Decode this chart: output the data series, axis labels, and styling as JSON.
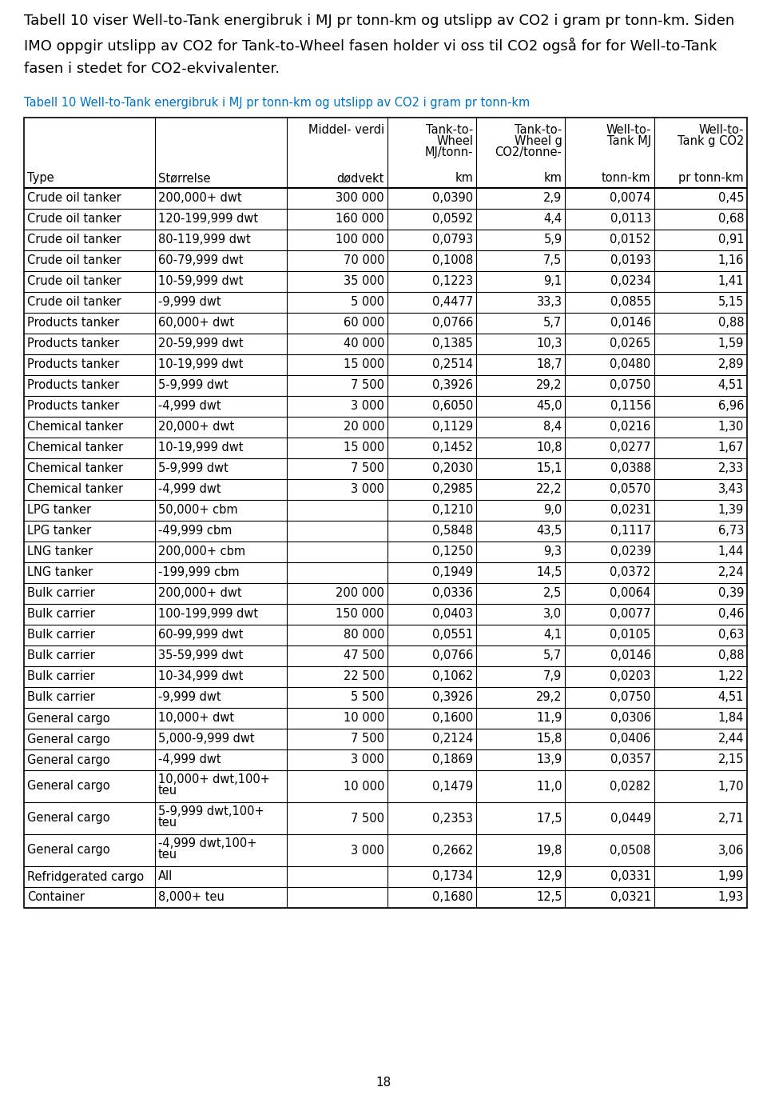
{
  "intro_text_lines": [
    "Tabell 10 viser Well-to-Tank energibruk i MJ pr tonn-km og utslipp av CO2 i gram pr tonn-km. Siden",
    "IMO oppgir utslipp av CO2 for Tank-to-Wheel fasen holder vi oss til CO2 også for for Well-to-Tank",
    "fasen i stedet for CO2-ekvivalenter."
  ],
  "table_title": "Tabell 10 Well-to-Tank energibruk i MJ pr tonn-km og utslipp av CO2 i gram pr tonn-km",
  "rows": [
    [
      "Crude oil tanker",
      "200,000+ dwt",
      "300 000",
      "0,0390",
      "2,9",
      "0,0074",
      "0,45"
    ],
    [
      "Crude oil tanker",
      "120-199,999 dwt",
      "160 000",
      "0,0592",
      "4,4",
      "0,0113",
      "0,68"
    ],
    [
      "Crude oil tanker",
      "80-119,999 dwt",
      "100 000",
      "0,0793",
      "5,9",
      "0,0152",
      "0,91"
    ],
    [
      "Crude oil tanker",
      "60-79,999 dwt",
      "70 000",
      "0,1008",
      "7,5",
      "0,0193",
      "1,16"
    ],
    [
      "Crude oil tanker",
      "10-59,999 dwt",
      "35 000",
      "0,1223",
      "9,1",
      "0,0234",
      "1,41"
    ],
    [
      "Crude oil tanker",
      "-9,999 dwt",
      "5 000",
      "0,4477",
      "33,3",
      "0,0855",
      "5,15"
    ],
    [
      "Products tanker",
      "60,000+ dwt",
      "60 000",
      "0,0766",
      "5,7",
      "0,0146",
      "0,88"
    ],
    [
      "Products tanker",
      "20-59,999 dwt",
      "40 000",
      "0,1385",
      "10,3",
      "0,0265",
      "1,59"
    ],
    [
      "Products tanker",
      "10-19,999 dwt",
      "15 000",
      "0,2514",
      "18,7",
      "0,0480",
      "2,89"
    ],
    [
      "Products tanker",
      "5-9,999 dwt",
      "7 500",
      "0,3926",
      "29,2",
      "0,0750",
      "4,51"
    ],
    [
      "Products tanker",
      "-4,999 dwt",
      "3 000",
      "0,6050",
      "45,0",
      "0,1156",
      "6,96"
    ],
    [
      "Chemical tanker",
      "20,000+ dwt",
      "20 000",
      "0,1129",
      "8,4",
      "0,0216",
      "1,30"
    ],
    [
      "Chemical tanker",
      "10-19,999 dwt",
      "15 000",
      "0,1452",
      "10,8",
      "0,0277",
      "1,67"
    ],
    [
      "Chemical tanker",
      "5-9,999 dwt",
      "7 500",
      "0,2030",
      "15,1",
      "0,0388",
      "2,33"
    ],
    [
      "Chemical tanker",
      "-4,999 dwt",
      "3 000",
      "0,2985",
      "22,2",
      "0,0570",
      "3,43"
    ],
    [
      "LPG tanker",
      "50,000+ cbm",
      "",
      "0,1210",
      "9,0",
      "0,0231",
      "1,39"
    ],
    [
      "LPG tanker",
      "-49,999 cbm",
      "",
      "0,5848",
      "43,5",
      "0,1117",
      "6,73"
    ],
    [
      "LNG tanker",
      "200,000+ cbm",
      "",
      "0,1250",
      "9,3",
      "0,0239",
      "1,44"
    ],
    [
      "LNG tanker",
      "-199,999 cbm",
      "",
      "0,1949",
      "14,5",
      "0,0372",
      "2,24"
    ],
    [
      "Bulk carrier",
      "200,000+ dwt",
      "200 000",
      "0,0336",
      "2,5",
      "0,0064",
      "0,39"
    ],
    [
      "Bulk carrier",
      "100-199,999 dwt",
      "150 000",
      "0,0403",
      "3,0",
      "0,0077",
      "0,46"
    ],
    [
      "Bulk carrier",
      "60-99,999 dwt",
      "80 000",
      "0,0551",
      "4,1",
      "0,0105",
      "0,63"
    ],
    [
      "Bulk carrier",
      "35-59,999 dwt",
      "47 500",
      "0,0766",
      "5,7",
      "0,0146",
      "0,88"
    ],
    [
      "Bulk carrier",
      "10-34,999 dwt",
      "22 500",
      "0,1062",
      "7,9",
      "0,0203",
      "1,22"
    ],
    [
      "Bulk carrier",
      "-9,999 dwt",
      "5 500",
      "0,3926",
      "29,2",
      "0,0750",
      "4,51"
    ],
    [
      "General cargo",
      "10,000+ dwt",
      "10 000",
      "0,1600",
      "11,9",
      "0,0306",
      "1,84"
    ],
    [
      "General cargo",
      "5,000-9,999 dwt",
      "7 500",
      "0,2124",
      "15,8",
      "0,0406",
      "2,44"
    ],
    [
      "General cargo",
      "-4,999 dwt",
      "3 000",
      "0,1869",
      "13,9",
      "0,0357",
      "2,15"
    ],
    [
      "General cargo",
      "10,000+ dwt,100+\nteu",
      "10 000",
      "0,1479",
      "11,0",
      "0,0282",
      "1,70"
    ],
    [
      "General cargo",
      "5-9,999 dwt,100+\nteu",
      "7 500",
      "0,2353",
      "17,5",
      "0,0449",
      "2,71"
    ],
    [
      "General cargo",
      "-4,999 dwt,100+\nteu",
      "3 000",
      "0,2662",
      "19,8",
      "0,0508",
      "3,06"
    ],
    [
      "Refridgerated cargo",
      "All",
      "",
      "0,1734",
      "12,9",
      "0,0331",
      "1,99"
    ],
    [
      "Container",
      "8,000+ teu",
      "",
      "0,1680",
      "12,5",
      "0,0321",
      "1,93"
    ]
  ],
  "multiline_rows": [
    28,
    29,
    30
  ],
  "col_alignments": [
    "left",
    "left",
    "right",
    "right",
    "right",
    "right",
    "right"
  ],
  "title_color": "#0070C0",
  "text_color": "#000000",
  "background_color": "#ffffff"
}
